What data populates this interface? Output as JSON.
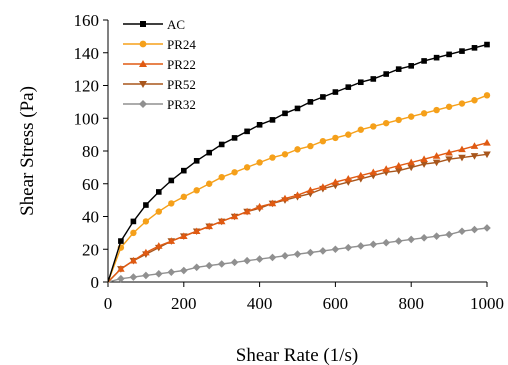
{
  "chart_data": {
    "type": "line",
    "xlabel": "Shear Rate (1/s)",
    "ylabel": "Shear Stress (Pa)",
    "xlim": [
      0,
      1000
    ],
    "ylim": [
      0,
      160
    ],
    "xticks": [
      "0",
      "200",
      "400",
      "600",
      "800",
      "1000"
    ],
    "yticks": [
      "0",
      "20",
      "40",
      "60",
      "80",
      "100",
      "120",
      "140",
      "160"
    ],
    "grid": false,
    "legend_position": "top-left",
    "x": [
      0,
      34,
      67,
      100,
      134,
      167,
      200,
      234,
      267,
      300,
      334,
      367,
      400,
      434,
      467,
      500,
      534,
      567,
      600,
      634,
      667,
      700,
      734,
      767,
      800,
      834,
      867,
      900,
      934,
      967,
      1000
    ],
    "series": [
      {
        "name": "AC",
        "color": "#000000",
        "marker": "square",
        "values": [
          0,
          25,
          37,
          47,
          55,
          62,
          68,
          74,
          79,
          84,
          88,
          92,
          96,
          99,
          103,
          106,
          110,
          113,
          116,
          119,
          122,
          124,
          127,
          130,
          132,
          135,
          137,
          139,
          141,
          143,
          145
        ]
      },
      {
        "name": "PR24",
        "color": "#f5a01a",
        "marker": "circle",
        "values": [
          0,
          21,
          30,
          37,
          43,
          48,
          52,
          56,
          60,
          64,
          67,
          70,
          73,
          76,
          78,
          81,
          83,
          86,
          88,
          90,
          93,
          95,
          97,
          99,
          101,
          103,
          105,
          107,
          109,
          111,
          114
        ]
      },
      {
        "name": "PR22",
        "color": "#e05a12",
        "marker": "triangle-up",
        "values": [
          0,
          8,
          13,
          18,
          22,
          25,
          28,
          31,
          34,
          37,
          40,
          43,
          46,
          48,
          51,
          53,
          56,
          58,
          61,
          63,
          65,
          67,
          69,
          71,
          73,
          75,
          77,
          79,
          81,
          83,
          85
        ]
      },
      {
        "name": "PR52",
        "color": "#a8561c",
        "marker": "triangle-down",
        "values": [
          0,
          8,
          13,
          17,
          21,
          25,
          28,
          31,
          34,
          37,
          40,
          43,
          45,
          48,
          50,
          52,
          54,
          57,
          59,
          61,
          63,
          65,
          67,
          68,
          70,
          72,
          73,
          75,
          76,
          77,
          78
        ]
      },
      {
        "name": "PR32",
        "color": "#909090",
        "marker": "diamond",
        "values": [
          0,
          2,
          3,
          4,
          5,
          6,
          7,
          9,
          10,
          11,
          12,
          13,
          14,
          15,
          16,
          17,
          18,
          19,
          20,
          21,
          22,
          23,
          24,
          25,
          26,
          27,
          28,
          29,
          31,
          32,
          33
        ]
      }
    ]
  }
}
